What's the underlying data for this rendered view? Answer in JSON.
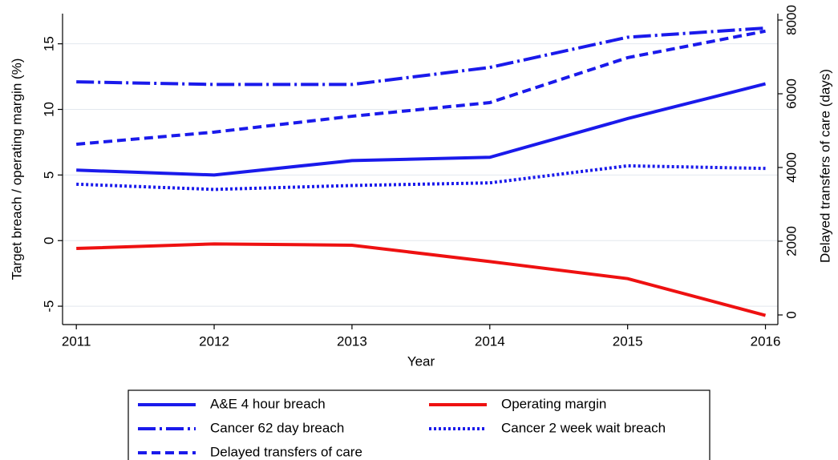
{
  "chart_data": {
    "type": "line",
    "x_label": "Year",
    "y_label": "Target breach / operating margin (%)",
    "y2_label": "Delayed transfers of care (days)",
    "x": [
      2011,
      2012,
      2013,
      2014,
      2015,
      2016
    ],
    "xlim": [
      2010.9,
      2016.09
    ],
    "xticks": [
      2011,
      2012,
      2013,
      2014,
      2015,
      2016
    ],
    "ylim": [
      -6.4,
      17.3
    ],
    "yticks": [
      -5,
      0,
      5,
      10,
      15
    ],
    "y2lim": [
      -261,
      8174
    ],
    "y2ticks": [
      0,
      2000,
      4000,
      6000,
      8000
    ],
    "grid": true,
    "legend": "bottom",
    "series": [
      {
        "name": "A&E 4 hour breach",
        "color": "#1a1aeb",
        "dash": "solid",
        "values": [
          5.37,
          5.0,
          6.1,
          6.35,
          9.3,
          11.95
        ]
      },
      {
        "name": "Operating margin",
        "color": "#ee1111",
        "dash": "solid",
        "values": [
          -0.6,
          -0.25,
          -0.35,
          -1.6,
          -2.9,
          -5.7
        ]
      },
      {
        "name": "Cancer 62 day breach",
        "color": "#1a1aeb",
        "dash": "dashdot",
        "values": [
          12.1,
          11.9,
          11.9,
          13.2,
          15.5,
          16.2
        ]
      },
      {
        "name": "Cancer 2 week wait breach",
        "color": "#1a1aeb",
        "dash": "dot",
        "values": [
          4.3,
          3.9,
          4.2,
          4.4,
          5.7,
          5.5
        ]
      },
      {
        "name": "Delayed transfers of care",
        "color": "#1a1aeb",
        "dash": "dash",
        "axis": "y2",
        "values": [
          4630,
          4960,
          5390,
          5760,
          6980,
          7700
        ]
      }
    ]
  }
}
